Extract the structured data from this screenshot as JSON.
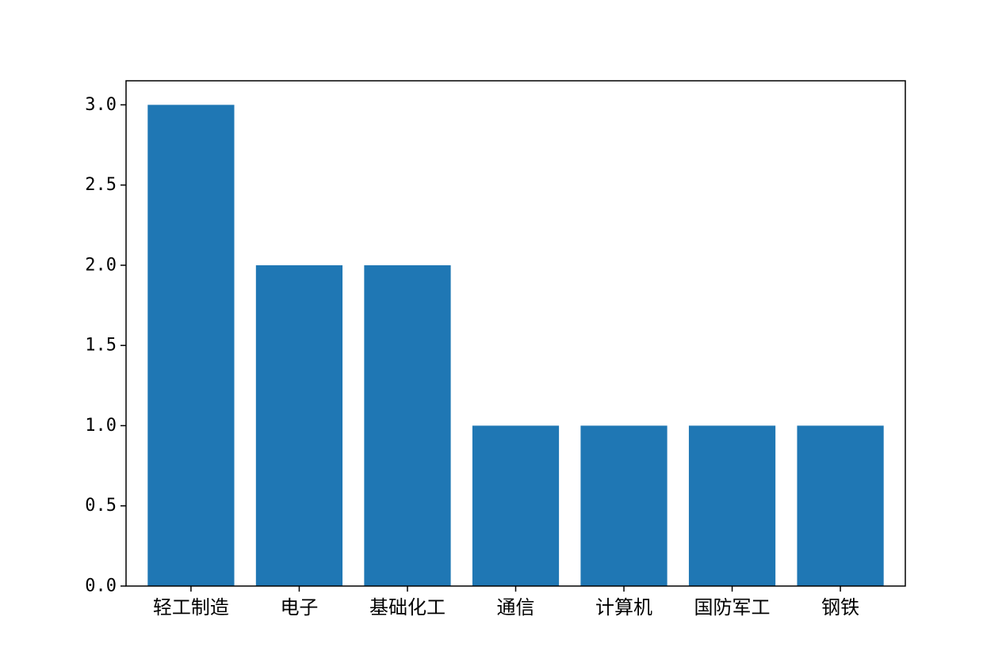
{
  "chart_data": {
    "type": "bar",
    "title": "",
    "xlabel": "",
    "ylabel": "",
    "categories": [
      "轻工制造",
      "电子",
      "基础化工",
      "通信",
      "计算机",
      "国防军工",
      "钢铁"
    ],
    "values": [
      3,
      2,
      2,
      1,
      1,
      1,
      1
    ],
    "ylim": [
      0,
      3.15
    ],
    "yticks": [
      0.0,
      0.5,
      1.0,
      1.5,
      2.0,
      2.5,
      3.0
    ],
    "ytick_labels": [
      "0.0",
      "0.5",
      "1.0",
      "1.5",
      "2.0",
      "2.5",
      "3.0"
    ],
    "bar_color": "#1f77b4",
    "grid": false,
    "legend": "none"
  }
}
